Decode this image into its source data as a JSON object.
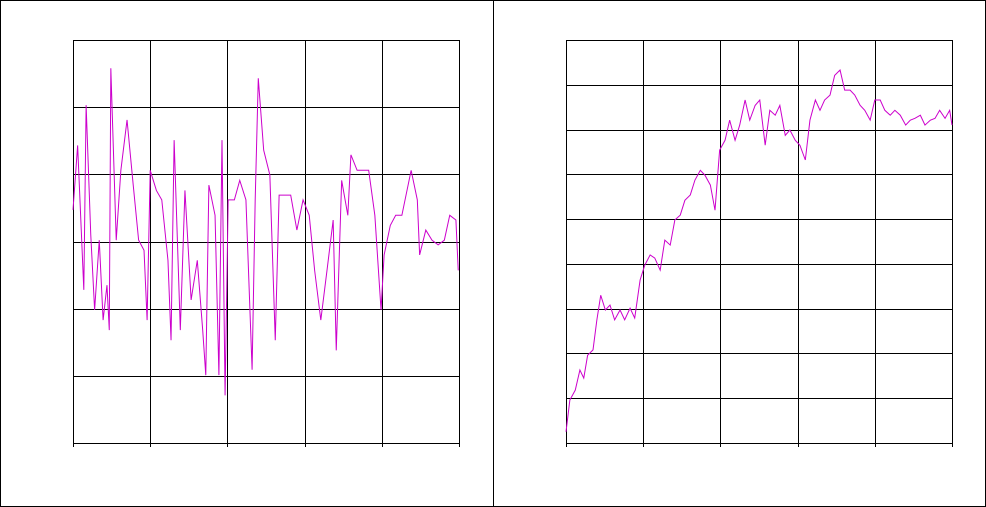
{
  "chart_data": [
    {
      "type": "line",
      "grid": true,
      "xlim": [
        0,
        5
      ],
      "xticks": [
        0,
        1,
        2,
        3,
        4,
        5
      ],
      "ylim": [
        0,
        6
      ],
      "yticks": [
        0,
        1,
        2,
        3,
        4,
        5,
        6
      ],
      "x": [
        0,
        0.06,
        0.14,
        0.17,
        0.23,
        0.28,
        0.34,
        0.39,
        0.44,
        0.47,
        0.49,
        0.56,
        0.62,
        0.7,
        0.78,
        0.85,
        0.92,
        0.96,
        1.0,
        1.08,
        1.15,
        1.23,
        1.27,
        1.31,
        1.39,
        1.45,
        1.53,
        1.61,
        1.68,
        1.72,
        1.76,
        1.84,
        1.89,
        1.93,
        1.97,
        2.01,
        2.09,
        2.16,
        2.24,
        2.32,
        2.36,
        2.4,
        2.47,
        2.55,
        2.62,
        2.67,
        2.75,
        2.82,
        2.9,
        2.98,
        3.06,
        3.13,
        3.21,
        3.29,
        3.37,
        3.41,
        3.48,
        3.56,
        3.6,
        3.68,
        3.76,
        3.83,
        3.91,
        3.99,
        4.03,
        4.11,
        4.18,
        4.26,
        4.38,
        4.46,
        4.49,
        4.57,
        4.65,
        4.73,
        4.81,
        4.88,
        4.96,
        4.99
      ],
      "series": [
        {
          "color": "#cc00cc",
          "values": [
            3.47,
            4.43,
            2.28,
            5.03,
            3.1,
            1.98,
            3.02,
            1.83,
            2.35,
            1.68,
            5.58,
            3.02,
            4.06,
            4.81,
            3.84,
            3.02,
            2.87,
            1.83,
            4.06,
            3.76,
            3.62,
            2.72,
            1.53,
            4.51,
            1.68,
            3.76,
            2.13,
            2.72,
            1.68,
            1.01,
            3.84,
            3.39,
            1.01,
            4.51,
            0.71,
            3.62,
            3.62,
            3.91,
            3.62,
            1.09,
            3.62,
            5.43,
            4.36,
            3.99,
            1.53,
            3.69,
            3.69,
            3.69,
            3.17,
            3.62,
            3.39,
            2.57,
            1.83,
            2.57,
            3.32,
            1.38,
            3.91,
            3.39,
            4.29,
            4.06,
            4.06,
            4.06,
            3.39,
            1.98,
            2.8,
            3.24,
            3.39,
            3.39,
            4.06,
            3.62,
            2.8,
            3.17,
            3.02,
            2.95,
            3.02,
            3.39,
            3.32,
            2.57
          ]
        }
      ]
    },
    {
      "type": "line",
      "grid": true,
      "xlim": [
        0,
        5
      ],
      "xticks": [
        0,
        1,
        2,
        3,
        4,
        5
      ],
      "ylim": [
        0,
        9
      ],
      "yticks": [
        0,
        1,
        2,
        3,
        4,
        5,
        6,
        7,
        8,
        9
      ],
      "x": [
        0,
        0.05,
        0.12,
        0.18,
        0.23,
        0.28,
        0.35,
        0.4,
        0.45,
        0.51,
        0.57,
        0.63,
        0.7,
        0.76,
        0.83,
        0.89,
        0.96,
        1.02,
        1.09,
        1.15,
        1.22,
        1.28,
        1.35,
        1.41,
        1.48,
        1.54,
        1.61,
        1.67,
        1.74,
        1.8,
        1.87,
        1.93,
        1.99,
        2.06,
        2.12,
        2.19,
        2.25,
        2.32,
        2.38,
        2.45,
        2.51,
        2.58,
        2.64,
        2.71,
        2.77,
        2.84,
        2.9,
        2.97,
        3.03,
        3.1,
        3.16,
        3.23,
        3.29,
        3.35,
        3.42,
        3.48,
        3.55,
        3.61,
        3.68,
        3.74,
        3.81,
        3.87,
        3.94,
        4.0,
        4.07,
        4.13,
        4.2,
        4.26,
        4.33,
        4.4,
        4.46,
        4.52,
        4.59,
        4.65,
        4.72,
        4.78,
        4.84,
        4.91,
        4.97,
        5.0
      ],
      "series": [
        {
          "color": "#cc00cc",
          "values": [
            0.25,
            0.96,
            1.18,
            1.63,
            1.45,
            1.96,
            2.08,
            2.75,
            3.3,
            2.97,
            3.08,
            2.75,
            2.97,
            2.75,
            3.01,
            2.79,
            3.64,
            3.97,
            4.2,
            4.13,
            3.86,
            4.53,
            4.42,
            4.98,
            5.09,
            5.42,
            5.54,
            5.87,
            6.09,
            5.98,
            5.76,
            5.2,
            6.54,
            6.76,
            7.21,
            6.76,
            7.1,
            7.66,
            7.21,
            7.54,
            7.66,
            6.65,
            7.43,
            7.32,
            7.54,
            6.87,
            6.99,
            6.76,
            6.65,
            6.32,
            7.21,
            7.66,
            7.43,
            7.66,
            7.77,
            8.21,
            8.33,
            7.88,
            7.88,
            7.77,
            7.54,
            7.43,
            7.21,
            7.66,
            7.66,
            7.43,
            7.32,
            7.43,
            7.32,
            7.1,
            7.21,
            7.25,
            7.32,
            7.1,
            7.21,
            7.25,
            7.43,
            7.25,
            7.43,
            7.1
          ]
        }
      ]
    }
  ]
}
